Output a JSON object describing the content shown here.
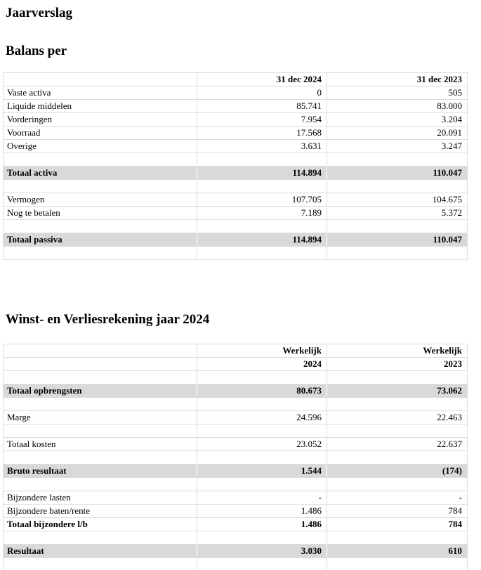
{
  "page": {
    "title": "Jaarverslag"
  },
  "sections": [
    {
      "heading": "Balans per"
    },
    {
      "heading": "Winst- en Verliesrekening jaar 2024"
    }
  ],
  "colors": {
    "total_row_bg": "#d9d9d9",
    "grid_line": "#dcdcdc",
    "text": "#000000"
  },
  "balans_table": {
    "rows": [
      {
        "style": "header",
        "cells": [
          "",
          "31 dec 2024",
          "31 dec 2023"
        ]
      },
      {
        "style": "data",
        "cells": [
          "Vaste activa",
          "0",
          "505"
        ]
      },
      {
        "style": "data",
        "cells": [
          "Liquide middelen",
          "85.741",
          "83.000"
        ]
      },
      {
        "style": "data",
        "cells": [
          "Vorderingen",
          "7.954",
          "3.204"
        ]
      },
      {
        "style": "data",
        "cells": [
          "Voorraad",
          "17.568",
          "20.091"
        ]
      },
      {
        "style": "data",
        "cells": [
          "Overige",
          "3.631",
          "3.247"
        ]
      },
      {
        "style": "blank",
        "cells": [
          "",
          "",
          ""
        ]
      },
      {
        "style": "total",
        "cells": [
          "Totaal activa",
          "114.894",
          "110.047"
        ]
      },
      {
        "style": "blank",
        "cells": [
          "",
          "",
          ""
        ]
      },
      {
        "style": "data",
        "cells": [
          "Vermogen",
          "107.705",
          "104.675"
        ]
      },
      {
        "style": "data",
        "cells": [
          "Nog te betalen",
          "7.189",
          "5.372"
        ]
      },
      {
        "style": "blank",
        "cells": [
          "",
          "",
          ""
        ]
      },
      {
        "style": "total",
        "cells": [
          "Totaal passiva",
          "114.894",
          "110.047"
        ]
      },
      {
        "style": "blank",
        "cells": [
          "",
          "",
          ""
        ]
      }
    ]
  },
  "winst_verlies_table": {
    "rows": [
      {
        "style": "header",
        "cells": [
          "",
          "Werkelijk",
          "Werkelijk"
        ]
      },
      {
        "style": "header",
        "cells": [
          "",
          "2024",
          "2023"
        ]
      },
      {
        "style": "blank",
        "cells": [
          "",
          "",
          ""
        ]
      },
      {
        "style": "total",
        "cells": [
          "Totaal opbrengsten",
          "80.673",
          "73.062"
        ]
      },
      {
        "style": "blank",
        "cells": [
          "",
          "",
          ""
        ]
      },
      {
        "style": "data",
        "cells": [
          "Marge",
          "24.596",
          "22.463"
        ]
      },
      {
        "style": "blank",
        "cells": [
          "",
          "",
          ""
        ]
      },
      {
        "style": "data",
        "cells": [
          "Totaal kosten",
          "23.052",
          "22.637"
        ]
      },
      {
        "style": "blank",
        "cells": [
          "",
          "",
          ""
        ]
      },
      {
        "style": "total",
        "cells": [
          "Bruto resultaat",
          "1.544",
          "(174)"
        ]
      },
      {
        "style": "blank",
        "cells": [
          "",
          "",
          ""
        ]
      },
      {
        "style": "data",
        "cells": [
          "Bijzondere lasten",
          "-",
          "-"
        ]
      },
      {
        "style": "data",
        "cells": [
          "Bijzondere baten/rente",
          "1.486",
          "784"
        ]
      },
      {
        "style": "bold",
        "cells": [
          "Totaal bijzondere l/b",
          "1.486",
          "784"
        ]
      },
      {
        "style": "blank",
        "cells": [
          "",
          "",
          ""
        ]
      },
      {
        "style": "total",
        "cells": [
          "Resultaat",
          "3.030",
          "610"
        ]
      },
      {
        "style": "blank",
        "cells": [
          "",
          "",
          ""
        ]
      }
    ]
  }
}
